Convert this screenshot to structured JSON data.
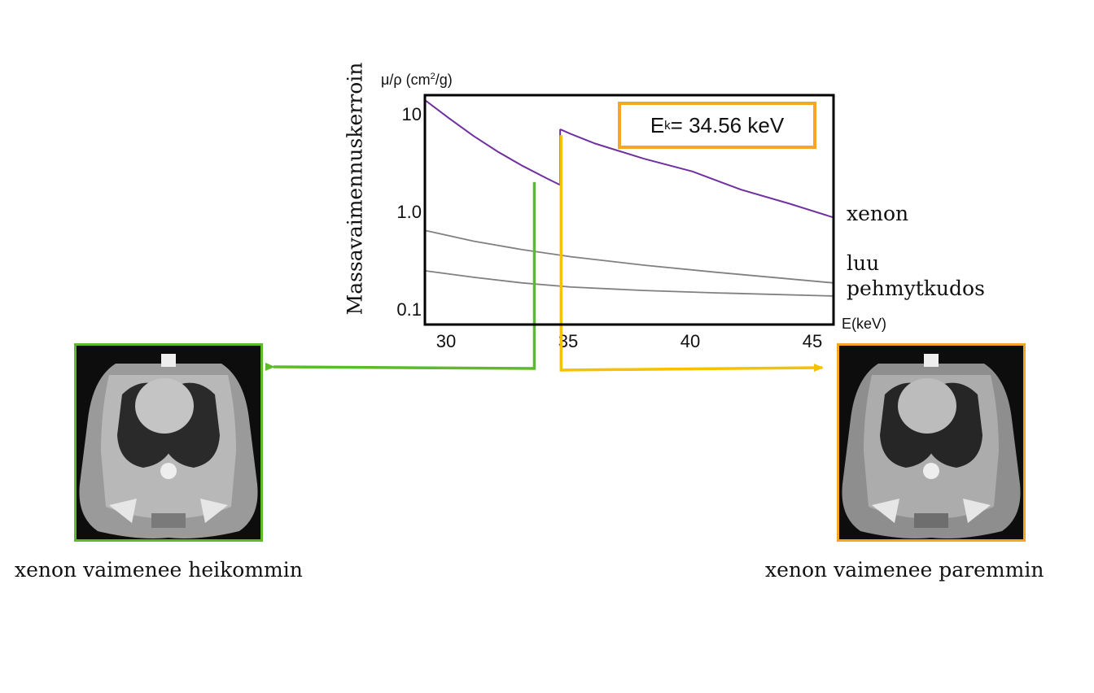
{
  "chart_data": {
    "type": "line",
    "title": "",
    "ylabel_vertical": "Massavaimennuskerroin",
    "ylabel_unit_prefix": "μ/ρ (cm",
    "ylabel_unit_sup": "2",
    "ylabel_unit_suffix": "/g)",
    "xlabel": "E(keV)",
    "xlim": [
      29,
      45.8
    ],
    "ylim": [
      0.085,
      16
    ],
    "yscale": "log",
    "x_ticks": [
      30,
      35,
      40,
      45
    ],
    "x_tick_labels": [
      "30",
      "35",
      "40",
      "45"
    ],
    "y_ticks": [
      10,
      1.0,
      0.1
    ],
    "y_tick_labels": [
      "10",
      "1.0",
      "0.1"
    ],
    "grid": false,
    "series": [
      {
        "name": "xenon",
        "color": "#7030a0",
        "segments": [
          {
            "x": [
              29.0,
              30.0,
              31.0,
              32.0,
              33.0,
              34.0,
              34.56
            ],
            "y": [
              14.3,
              9.4,
              6.3,
              4.4,
              3.2,
              2.4,
              2.06
            ]
          },
          {
            "x": [
              34.56,
              35.0,
              36.0,
              38.0,
              40.0,
              42.0,
              44.0,
              45.8
            ],
            "y": [
              7.35,
              6.6,
              5.3,
              3.75,
              2.8,
              1.85,
              1.34,
              0.98
            ]
          }
        ]
      },
      {
        "name": "luu",
        "color": "#808080",
        "segments": [
          {
            "x": [
              29.0,
              31.0,
              33.0,
              35.0,
              38.0,
              41.0,
              45.8
            ],
            "y": [
              0.73,
              0.57,
              0.47,
              0.4,
              0.33,
              0.28,
              0.22
            ]
          }
        ]
      },
      {
        "name": "pehmytkudos",
        "color": "#808080",
        "segments": [
          {
            "x": [
              29.0,
              31.0,
              33.0,
              35.0,
              38.0,
              41.0,
              45.8
            ],
            "y": [
              0.29,
              0.25,
              0.22,
              0.2,
              0.185,
              0.175,
              0.163
            ]
          }
        ]
      }
    ],
    "annotation": {
      "prefix": "E",
      "sub": "k",
      "suffix": " = 34.56 keV",
      "color": "#f5a623"
    },
    "markers": [
      {
        "name": "below-edge",
        "x": 33.5,
        "color": "#5dbb2a"
      },
      {
        "name": "above-edge",
        "x": 34.6,
        "color": "#f5c200"
      }
    ]
  },
  "images": {
    "left": {
      "caption": "xenon vaimenee heikommin",
      "border_color": "#5dbb2a"
    },
    "right": {
      "caption": "xenon vaimenee paremmin",
      "border_color": "#f5a623"
    }
  }
}
